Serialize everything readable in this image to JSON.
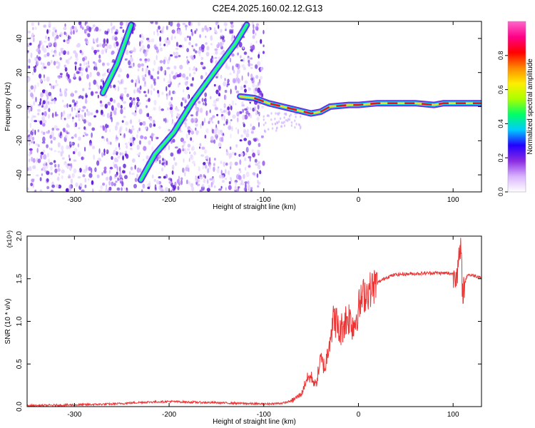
{
  "title": "C2E4.2025.160.02.12.G13",
  "chart_data": [
    {
      "type": "heatmap",
      "xlabel": "Height of straight line (km)",
      "ylabel": "Frequency (Hz)",
      "xlim": [
        -350,
        130
      ],
      "ylim": [
        -50,
        50
      ],
      "xticks": [
        -300,
        -200,
        -100,
        0,
        100
      ],
      "yticks": [
        -40,
        -20,
        0,
        20,
        40
      ],
      "colorbar": {
        "label": "Normalized spectral amplitude",
        "range": [
          0,
          1
        ],
        "ticks": [
          "0.0",
          "0.2",
          "0.4",
          "0.6",
          "0.8"
        ],
        "colors": [
          "#ffffff",
          "#d9b3ff",
          "#8a2be2",
          "#2200ff",
          "#00ccff",
          "#00ff66",
          "#aaff00",
          "#ffee00",
          "#ff8800",
          "#ff0000",
          "#ff0088",
          "#ff66cc"
        ]
      },
      "ridges": [
        {
          "points": [
            [
              -270,
              8
            ],
            [
              -255,
              25
            ],
            [
              -240,
              48
            ]
          ],
          "amplitude": 0.5
        },
        {
          "points": [
            [
              -230,
              -43
            ],
            [
              -215,
              -28
            ],
            [
              -195,
              -15
            ],
            [
              -175,
              3
            ],
            [
              -150,
              22
            ],
            [
              -130,
              37
            ],
            [
              -118,
              48
            ]
          ],
          "amplitude": 0.45
        },
        {
          "points": [
            [
              -125,
              6
            ],
            [
              -110,
              5
            ],
            [
              -95,
              2
            ],
            [
              -80,
              0
            ],
            [
              -65,
              -2
            ],
            [
              -50,
              -4
            ],
            [
              -40,
              -3
            ],
            [
              -30,
              0
            ],
            [
              -10,
              1
            ],
            [
              0,
              1
            ],
            [
              20,
              2
            ],
            [
              60,
              2
            ],
            [
              80,
              1
            ],
            [
              90,
              2
            ],
            [
              130,
              2
            ]
          ],
          "amplitude": 0.85
        }
      ]
    },
    {
      "type": "line",
      "xlabel": "Height of straight line (km)",
      "ylabel": "SNR (10 * v/v)",
      "y_multiplier": "(x10⁴)",
      "xlim": [
        -350,
        130
      ],
      "ylim": [
        0,
        2.0
      ],
      "xticks": [
        -300,
        -200,
        -100,
        0,
        100
      ],
      "yticks": [
        "0.0",
        "0.5",
        "1.0",
        "1.5",
        "2.0"
      ],
      "color": "#ee3333",
      "series": [
        {
          "x": [
            -350,
            -300,
            -260,
            -230,
            -200,
            -170,
            -130,
            -100,
            -80,
            -70,
            -60,
            -55,
            -50,
            -45,
            -40,
            -35,
            -30,
            -25,
            -20,
            -15,
            -10,
            -5,
            0,
            5,
            10,
            20,
            30,
            40,
            60,
            80,
            100,
            105,
            108,
            110,
            115,
            130
          ],
          "y": [
            0.01,
            0.02,
            0.03,
            0.05,
            0.06,
            0.05,
            0.04,
            0.03,
            0.04,
            0.07,
            0.15,
            0.32,
            0.35,
            0.25,
            0.55,
            0.45,
            0.85,
            1.05,
            0.85,
            1.0,
            1.05,
            0.95,
            1.15,
            1.3,
            1.35,
            1.45,
            1.52,
            1.55,
            1.56,
            1.57,
            1.56,
            1.6,
            1.85,
            1.35,
            1.55,
            1.52
          ]
        }
      ]
    }
  ]
}
